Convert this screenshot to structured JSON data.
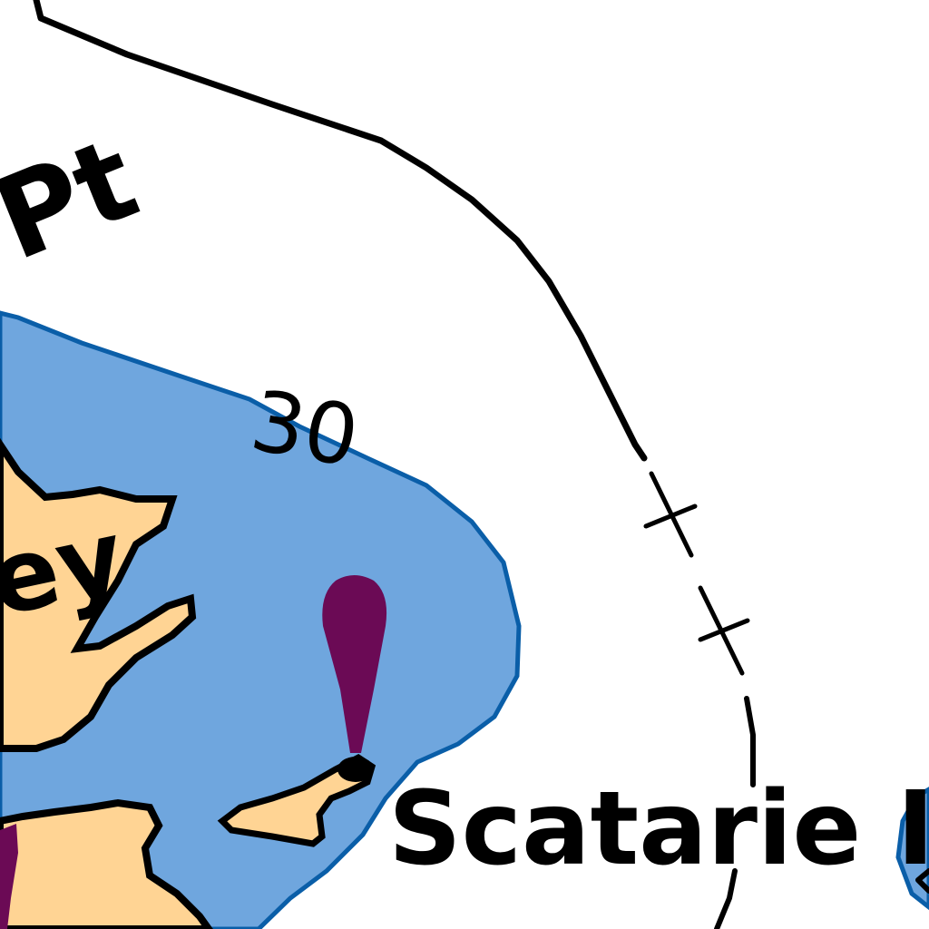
{
  "map": {
    "labels": {
      "point_fragment": "Pt",
      "bay_fragment": "ey",
      "island_fragment": "Scatarie I",
      "depth_contour": "30"
    },
    "colors": {
      "water": "#6fa6de",
      "water_edge": "#0a5ea8",
      "land": "#ffd494",
      "outline": "#000000",
      "light_marker": "#6b0a55",
      "background": "#ffffff"
    },
    "symbols": {
      "lighthouse": "teardrop-marker-icon",
      "boundary": "cross-dashed-line"
    }
  }
}
